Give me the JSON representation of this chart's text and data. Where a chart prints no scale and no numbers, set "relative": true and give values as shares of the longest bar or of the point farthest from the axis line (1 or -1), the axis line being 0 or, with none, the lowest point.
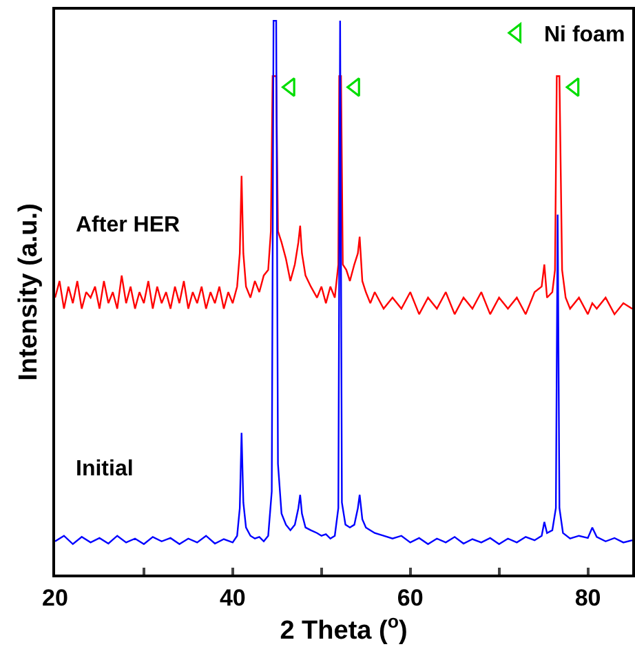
{
  "chart_data": {
    "type": "line",
    "xlabel": "2 Theta ($^{o}$)",
    "ylabel": "Intensity (a.u.)",
    "relative": true,
    "xlim": [
      20,
      85
    ],
    "xticks": [
      20,
      {
        "value": 30,
        "label": null
      },
      40,
      {
        "value": 50,
        "label": null
      },
      60,
      {
        "value": 70,
        "label": null
      },
      80
    ],
    "legend": "top right",
    "grid": false,
    "series": [
      {
        "name": "After HER",
        "color": "#ff0000",
        "x": [
          20,
          20.5,
          21,
          21.5,
          22,
          22.5,
          23,
          23.5,
          24,
          24.5,
          25,
          25.5,
          26,
          26.5,
          27,
          27.5,
          28,
          28.5,
          29,
          29.5,
          30,
          30.5,
          31,
          31.5,
          32,
          32.5,
          33,
          33.5,
          34,
          34.5,
          35,
          35.5,
          36,
          36.5,
          37,
          37.5,
          38,
          38.5,
          39,
          39.5,
          40,
          40.5,
          40.8,
          41,
          41.2,
          41.5,
          42,
          42.5,
          43,
          43.5,
          44,
          44.3,
          44.5,
          44.9,
          45.1,
          45.5,
          46,
          46.5,
          47,
          47.4,
          47.6,
          47.8,
          48.2,
          48.8,
          49.5,
          50,
          50.5,
          51,
          51.5,
          51.9,
          52,
          52.2,
          52.4,
          52.8,
          53.2,
          53.7,
          54.1,
          54.3,
          54.6,
          55,
          55.5,
          56,
          57,
          58,
          59,
          60,
          61,
          62,
          63,
          64,
          65,
          66,
          67,
          68,
          69,
          70,
          71,
          72,
          73,
          74,
          74.8,
          75.1,
          75.4,
          76,
          76.3,
          76.5,
          76.8,
          77.1,
          77.5,
          78,
          79,
          80,
          80.5,
          81,
          82,
          83,
          84,
          85
        ],
        "values": [
          0.5,
          0.53,
          0.48,
          0.52,
          0.49,
          0.53,
          0.48,
          0.51,
          0.5,
          0.52,
          0.48,
          0.53,
          0.49,
          0.51,
          0.48,
          0.54,
          0.49,
          0.52,
          0.48,
          0.51,
          0.49,
          0.53,
          0.48,
          0.52,
          0.49,
          0.51,
          0.48,
          0.52,
          0.49,
          0.53,
          0.48,
          0.51,
          0.49,
          0.52,
          0.48,
          0.51,
          0.49,
          0.52,
          0.48,
          0.51,
          0.49,
          0.52,
          0.58,
          0.72,
          0.58,
          0.52,
          0.5,
          0.53,
          0.51,
          0.54,
          0.55,
          0.62,
          0.9,
          0.9,
          0.62,
          0.6,
          0.57,
          0.53,
          0.56,
          0.6,
          0.63,
          0.58,
          0.54,
          0.52,
          0.5,
          0.52,
          0.49,
          0.52,
          0.5,
          0.56,
          0.9,
          0.9,
          0.56,
          0.55,
          0.53,
          0.56,
          0.58,
          0.61,
          0.53,
          0.51,
          0.49,
          0.51,
          0.48,
          0.5,
          0.48,
          0.51,
          0.47,
          0.5,
          0.48,
          0.51,
          0.47,
          0.5,
          0.48,
          0.51,
          0.47,
          0.5,
          0.48,
          0.5,
          0.47,
          0.51,
          0.52,
          0.56,
          0.5,
          0.51,
          0.55,
          0.9,
          0.9,
          0.55,
          0.5,
          0.48,
          0.5,
          0.47,
          0.49,
          0.48,
          0.5,
          0.47,
          0.49,
          0.48
        ]
      },
      {
        "name": "Initial",
        "color": "#0000ff",
        "x": [
          20,
          21,
          22,
          23,
          24,
          25,
          26,
          27,
          28,
          29,
          30,
          31,
          32,
          33,
          34,
          35,
          36,
          37,
          38,
          39,
          40,
          40.5,
          40.8,
          41,
          41.2,
          41.5,
          42,
          42.5,
          43,
          43.5,
          44,
          44.4,
          44.6,
          44.9,
          45.1,
          45.5,
          46,
          46.5,
          47,
          47.4,
          47.6,
          47.8,
          48.2,
          48.8,
          49.5,
          50,
          50.5,
          51,
          51.5,
          51.9,
          52.1,
          52.3,
          52.7,
          53.2,
          53.7,
          54.1,
          54.3,
          54.6,
          55,
          55.5,
          56,
          57,
          58,
          59,
          60,
          61,
          62,
          63,
          64,
          65,
          66,
          67,
          68,
          69,
          70,
          71,
          72,
          73,
          74,
          74.8,
          75.1,
          75.4,
          76,
          76.4,
          76.6,
          76.8,
          77.2,
          78,
          79,
          80,
          80.5,
          81,
          82,
          83,
          84,
          85
        ],
        "values": [
          0.06,
          0.07,
          0.055,
          0.068,
          0.058,
          0.066,
          0.056,
          0.07,
          0.058,
          0.065,
          0.055,
          0.068,
          0.06,
          0.066,
          0.055,
          0.065,
          0.058,
          0.07,
          0.056,
          0.064,
          0.058,
          0.07,
          0.12,
          0.256,
          0.13,
          0.085,
          0.07,
          0.065,
          0.068,
          0.06,
          0.07,
          0.15,
          1,
          1,
          0.2,
          0.11,
          0.09,
          0.08,
          0.09,
          0.12,
          0.144,
          0.11,
          0.085,
          0.08,
          0.075,
          0.07,
          0.073,
          0.065,
          0.07,
          0.12,
          1,
          0.13,
          0.09,
          0.085,
          0.09,
          0.12,
          0.144,
          0.1,
          0.085,
          0.08,
          0.075,
          0.07,
          0.065,
          0.07,
          0.058,
          0.066,
          0.055,
          0.065,
          0.058,
          0.068,
          0.056,
          0.064,
          0.058,
          0.066,
          0.055,
          0.065,
          0.058,
          0.068,
          0.062,
          0.07,
          0.095,
          0.075,
          0.08,
          0.12,
          0.65,
          0.12,
          0.075,
          0.065,
          0.07,
          0.066,
          0.085,
          0.068,
          0.06,
          0.066,
          0.058,
          0.062
        ]
      },
      {
        "name": "Ni foam",
        "type": "scatter",
        "marker": "triangle",
        "color": "#00dd00",
        "x": [
          46.5,
          53.8,
          78.5
        ],
        "values": [
          0.88,
          0.88,
          0.88
        ]
      }
    ]
  }
}
